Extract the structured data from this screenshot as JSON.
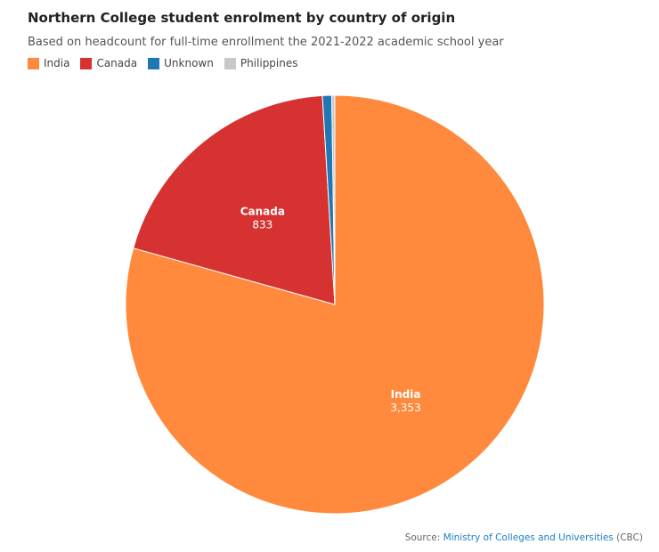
{
  "chart_data": {
    "type": "pie",
    "title": "Northern College student enrolment by country of origin",
    "subtitle": "Based on headcount for full-time enrollment the 2021-2022 academic school year",
    "legend_position": "top-left",
    "slices": [
      {
        "name": "India",
        "value": 3353,
        "label": "3,353",
        "color": "#ff8a3d",
        "show_label": true
      },
      {
        "name": "Canada",
        "value": 833,
        "label": "833",
        "color": "#d63232",
        "show_label": true
      },
      {
        "name": "Unknown",
        "value": 30,
        "label": "",
        "color": "#1f77b4",
        "show_label": false
      },
      {
        "name": "Philippines",
        "value": 10,
        "label": "",
        "color": "#c8c8c8",
        "show_label": false
      }
    ]
  },
  "source": {
    "prefix": "Source: ",
    "link": "Ministry of Colleges and Universities",
    "suffix": " (CBC)"
  }
}
